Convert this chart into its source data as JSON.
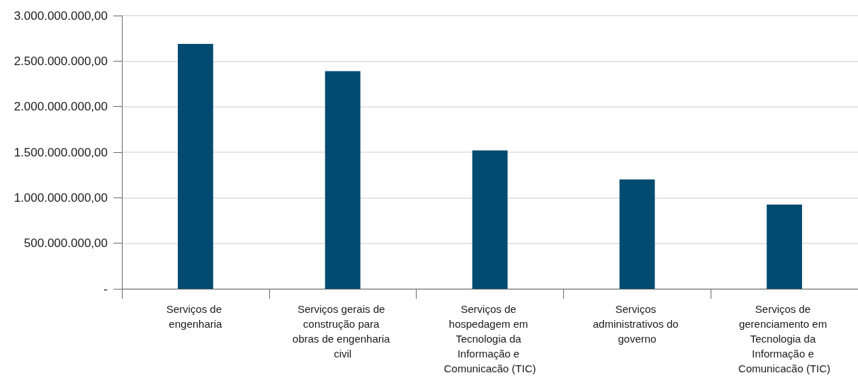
{
  "chart_data": {
    "type": "bar",
    "categories": [
      "Serviços de engenharia",
      "Serviços gerais de construção para obras de engenharia civil",
      "Serviços de hospedagem em Tecnologia da Informação e Comunicacão (TIC)",
      "Serviços administrativos do governo",
      "Serviços de gerenciamento em Tecnologia da Informação e Comunicacão (TIC)"
    ],
    "values": [
      2690000000,
      2390000000,
      1520000000,
      1200000000,
      925000000
    ],
    "color": "#024b70",
    "ylim": [
      0,
      3000000000
    ],
    "yticks": [
      {
        "value": 0,
        "label": "-"
      },
      {
        "value": 500000000,
        "label": "500.000.000,00"
      },
      {
        "value": 1000000000,
        "label": "1.000.000.000,00"
      },
      {
        "value": 1500000000,
        "label": "1.500.000.000,00"
      },
      {
        "value": 2000000000,
        "label": "2.000.000.000,00"
      },
      {
        "value": 2500000000,
        "label": "2.500.000.000,00"
      },
      {
        "value": 3000000000,
        "label": "3.000.000.000,00"
      }
    ],
    "grid": "y"
  }
}
